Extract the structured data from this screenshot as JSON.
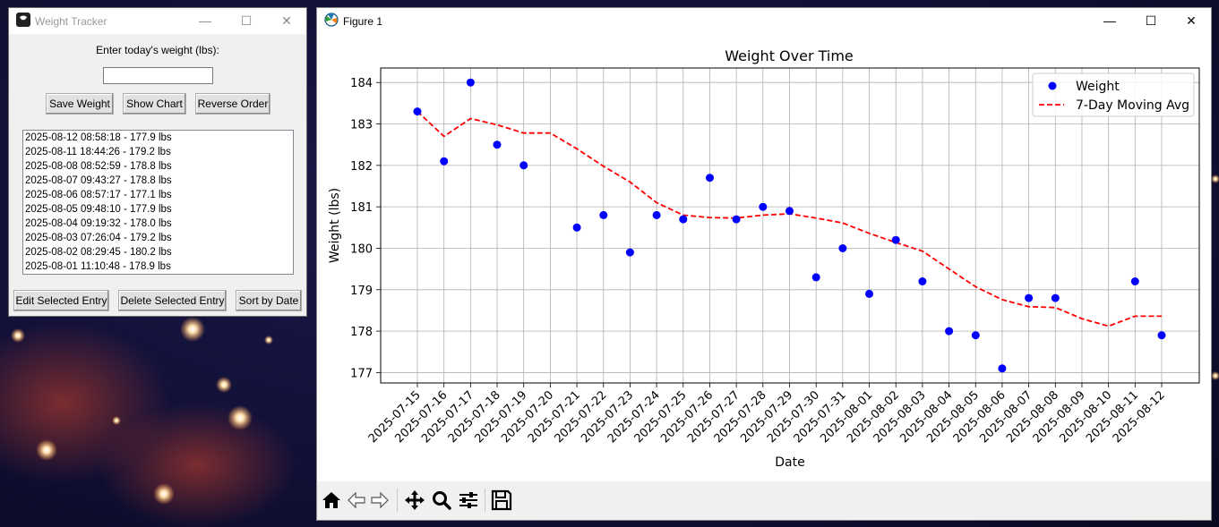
{
  "tracker": {
    "title": "Weight Tracker",
    "prompt": "Enter today's weight (lbs):",
    "input_value": "",
    "buttons": {
      "save": "Save Weight",
      "show_chart": "Show Chart",
      "reverse": "Reverse Order",
      "edit": "Edit Selected Entry",
      "delete": "Delete Selected Entry",
      "sort": "Sort by Date"
    },
    "entries": [
      "2025-08-12 08:58:18 - 177.9 lbs",
      "2025-08-11 18:44:26 - 179.2 lbs",
      "2025-08-08 08:52:59 - 178.8 lbs",
      "2025-08-07 09:43:27 - 178.8 lbs",
      "2025-08-06 08:57:17 - 177.1 lbs",
      "2025-08-05 09:48:10 - 177.9 lbs",
      "2025-08-04 09:19:32 - 178.0 lbs",
      "2025-08-03 07:26:04 - 179.2 lbs",
      "2025-08-02 08:29:45 - 180.2 lbs",
      "2025-08-01 11:10:48 - 178.9 lbs"
    ]
  },
  "figure": {
    "title": "Figure 1",
    "window_controls": {
      "minimize": "—",
      "maximize": "☐",
      "close": "✕"
    }
  },
  "chart_data": {
    "type": "scatter",
    "title": "Weight Over Time",
    "xlabel": "Date",
    "ylabel": "Weight (lbs)",
    "ylim": [
      176.75,
      184.35
    ],
    "yticks": [
      177,
      178,
      179,
      180,
      181,
      182,
      183,
      184
    ],
    "grid": true,
    "legend_position": "top-right",
    "categories": [
      "2025-07-15",
      "2025-07-16",
      "2025-07-17",
      "2025-07-18",
      "2025-07-19",
      "2025-07-20",
      "2025-07-21",
      "2025-07-22",
      "2025-07-23",
      "2025-07-24",
      "2025-07-25",
      "2025-07-26",
      "2025-07-27",
      "2025-07-28",
      "2025-07-29",
      "2025-07-30",
      "2025-07-31",
      "2025-08-01",
      "2025-08-02",
      "2025-08-03",
      "2025-08-04",
      "2025-08-05",
      "2025-08-06",
      "2025-08-07",
      "2025-08-08",
      "2025-08-09",
      "2025-08-10",
      "2025-08-11",
      "2025-08-12"
    ],
    "series": [
      {
        "name": "Weight",
        "kind": "scatter",
        "color": "#0000ff",
        "points": [
          [
            "2025-07-15",
            183.3
          ],
          [
            "2025-07-16",
            182.1
          ],
          [
            "2025-07-17",
            184.0
          ],
          [
            "2025-07-18",
            182.5
          ],
          [
            "2025-07-19",
            182.0
          ],
          [
            "2025-07-21",
            180.5
          ],
          [
            "2025-07-22",
            180.8
          ],
          [
            "2025-07-23",
            179.9
          ],
          [
            "2025-07-24",
            180.8
          ],
          [
            "2025-07-25",
            180.7
          ],
          [
            "2025-07-26",
            181.7
          ],
          [
            "2025-07-27",
            180.7
          ],
          [
            "2025-07-28",
            181.0
          ],
          [
            "2025-07-29",
            180.9
          ],
          [
            "2025-07-30",
            179.3
          ],
          [
            "2025-07-31",
            180.0
          ],
          [
            "2025-08-01",
            178.9
          ],
          [
            "2025-08-02",
            180.2
          ],
          [
            "2025-08-03",
            179.2
          ],
          [
            "2025-08-04",
            178.0
          ],
          [
            "2025-08-05",
            177.9
          ],
          [
            "2025-08-06",
            177.1
          ],
          [
            "2025-08-07",
            178.8
          ],
          [
            "2025-08-08",
            178.8
          ],
          [
            "2025-08-11",
            179.2
          ],
          [
            "2025-08-12",
            177.9
          ]
        ]
      },
      {
        "name": "7-Day Moving Avg",
        "kind": "line",
        "style": "dashed",
        "color": "#ff0000",
        "points": [
          [
            "2025-07-15",
            183.3
          ],
          [
            "2025-07-16",
            182.7
          ],
          [
            "2025-07-17",
            183.13
          ],
          [
            "2025-07-18",
            182.98
          ],
          [
            "2025-07-19",
            182.78
          ],
          [
            "2025-07-20",
            182.78
          ],
          [
            "2025-07-21",
            182.4
          ],
          [
            "2025-07-22",
            181.98
          ],
          [
            "2025-07-23",
            181.6
          ],
          [
            "2025-07-24",
            181.1
          ],
          [
            "2025-07-25",
            180.8
          ],
          [
            "2025-07-26",
            180.74
          ],
          [
            "2025-07-27",
            180.73
          ],
          [
            "2025-07-28",
            180.8
          ],
          [
            "2025-07-29",
            180.83
          ],
          [
            "2025-07-30",
            180.73
          ],
          [
            "2025-07-31",
            180.61
          ],
          [
            "2025-08-01",
            180.36
          ],
          [
            "2025-08-02",
            180.14
          ],
          [
            "2025-08-03",
            179.93
          ],
          [
            "2025-08-04",
            179.5
          ],
          [
            "2025-08-05",
            179.07
          ],
          [
            "2025-08-06",
            178.76
          ],
          [
            "2025-08-07",
            178.59
          ],
          [
            "2025-08-08",
            178.57
          ],
          [
            "2025-08-09",
            178.3
          ],
          [
            "2025-08-10",
            178.12
          ],
          [
            "2025-08-11",
            178.36
          ],
          [
            "2025-08-12",
            178.36
          ]
        ]
      }
    ]
  }
}
